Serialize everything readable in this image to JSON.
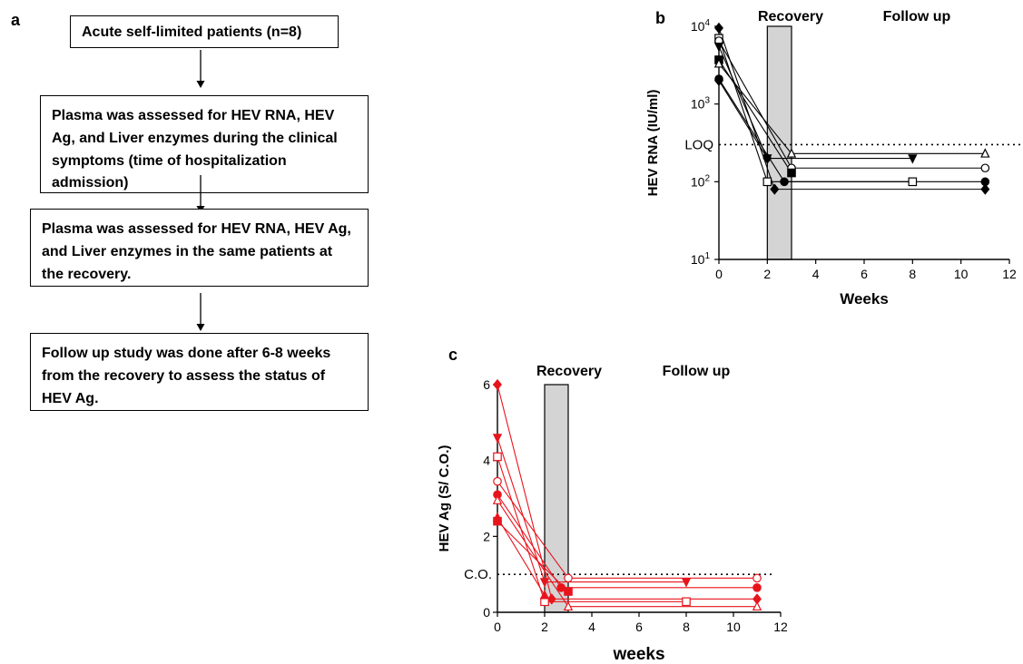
{
  "panel_labels": {
    "a": "a",
    "b": "b",
    "c": "c"
  },
  "flowchart": {
    "boxes": [
      "Acute self-limited patients (n=8)",
      "Plasma was assessed for HEV RNA, HEV Ag, and Liver enzymes during the clinical symptoms (time of hospitalization admission)",
      "Plasma was assessed for HEV RNA, HEV Ag, and Liver enzymes in the same patients at the recovery.",
      "Follow up study was done after 6-8 weeks from the recovery to assess the status of HEV Ag."
    ]
  },
  "colors": {
    "panel_b": "#000000",
    "panel_c": "#e8141c",
    "recovery_band": "#d4d4d4"
  },
  "chart_data": [
    {
      "id": "b",
      "type": "line",
      "scale_y": "log",
      "xlabel": "Weeks",
      "ylabel": "HEV RNA (IU/ml)",
      "xlim": [
        0,
        12
      ],
      "ylim": [
        10,
        10000
      ],
      "x_ticks": [
        0,
        2,
        4,
        6,
        8,
        10,
        12
      ],
      "y_ticks": [
        {
          "value": 10,
          "base": "10",
          "exp": "1"
        },
        {
          "value": 100,
          "base": "10",
          "exp": "2"
        },
        {
          "value": 1000,
          "base": "10",
          "exp": "3"
        },
        {
          "value": 10000,
          "base": "10",
          "exp": "4"
        }
      ],
      "reference_line": {
        "value": 300,
        "label": "LOQ"
      },
      "shaded_region": {
        "x": [
          2,
          3
        ],
        "label": "Recovery"
      },
      "region_labels": [
        "Recovery",
        "Follow up"
      ],
      "series": [
        {
          "marker": "diamond",
          "filled": true,
          "points": [
            [
              0,
              9500
            ],
            [
              2.3,
              80
            ],
            [
              11,
              80
            ]
          ]
        },
        {
          "marker": "square",
          "filled": false,
          "points": [
            [
              0,
              7000
            ],
            [
              2,
              100
            ],
            [
              8,
              100
            ]
          ]
        },
        {
          "marker": "circle",
          "filled": false,
          "points": [
            [
              0,
              6500
            ],
            [
              3,
              150
            ],
            [
              11,
              150
            ]
          ]
        },
        {
          "marker": "triangle-down",
          "filled": true,
          "points": [
            [
              0,
              5500
            ],
            [
              2,
              200
            ],
            [
              8,
              200
            ]
          ]
        },
        {
          "marker": "square",
          "filled": true,
          "points": [
            [
              0,
              3700
            ],
            [
              3,
              130
            ]
          ]
        },
        {
          "marker": "triangle-up",
          "filled": false,
          "points": [
            [
              0,
              3300
            ],
            [
              3,
              230
            ],
            [
              11,
              230
            ]
          ]
        },
        {
          "marker": "circle",
          "filled": true,
          "points": [
            [
              0,
              2100
            ],
            [
              2.7,
              100
            ],
            [
              11,
              100
            ]
          ]
        },
        {
          "marker": "diamond",
          "filled": true,
          "points": [
            [
              0,
              2000
            ],
            [
              2,
              200
            ]
          ]
        }
      ]
    },
    {
      "id": "c",
      "type": "line",
      "xlabel": "weeks",
      "ylabel": "HEV Ag (S/ C.O.)",
      "xlim": [
        0,
        12
      ],
      "ylim": [
        0,
        6
      ],
      "x_ticks": [
        0,
        2,
        4,
        6,
        8,
        10,
        12
      ],
      "y_ticks": [
        0,
        2,
        4,
        6
      ],
      "reference_line": {
        "value": 1,
        "label": "C.O."
      },
      "shaded_region": {
        "x": [
          2,
          3
        ],
        "label": "Recovery"
      },
      "region_labels": [
        "Recovery",
        "Follow up"
      ],
      "series": [
        {
          "marker": "diamond",
          "filled": true,
          "points": [
            [
              0,
              6.0
            ],
            [
              2.3,
              0.35
            ],
            [
              11,
              0.35
            ]
          ]
        },
        {
          "marker": "triangle-down",
          "filled": true,
          "points": [
            [
              0,
              4.6
            ],
            [
              2,
              0.8
            ],
            [
              8,
              0.8
            ]
          ]
        },
        {
          "marker": "square",
          "filled": false,
          "points": [
            [
              0,
              4.1
            ],
            [
              2,
              0.28
            ],
            [
              8,
              0.28
            ]
          ]
        },
        {
          "marker": "circle",
          "filled": false,
          "points": [
            [
              0,
              3.45
            ],
            [
              3,
              0.9
            ],
            [
              11,
              0.9
            ]
          ]
        },
        {
          "marker": "circle",
          "filled": true,
          "points": [
            [
              0,
              3.1
            ],
            [
              2.7,
              0.65
            ],
            [
              11,
              0.65
            ]
          ]
        },
        {
          "marker": "triangle-up",
          "filled": false,
          "points": [
            [
              0,
              2.95
            ],
            [
              3,
              0.15
            ],
            [
              11,
              0.15
            ]
          ]
        },
        {
          "marker": "triangle-up",
          "filled": true,
          "points": [
            [
              0,
              2.5
            ],
            [
              2,
              0.45
            ]
          ]
        },
        {
          "marker": "square",
          "filled": true,
          "points": [
            [
              0,
              2.4
            ],
            [
              3,
              0.55
            ]
          ]
        }
      ]
    }
  ]
}
